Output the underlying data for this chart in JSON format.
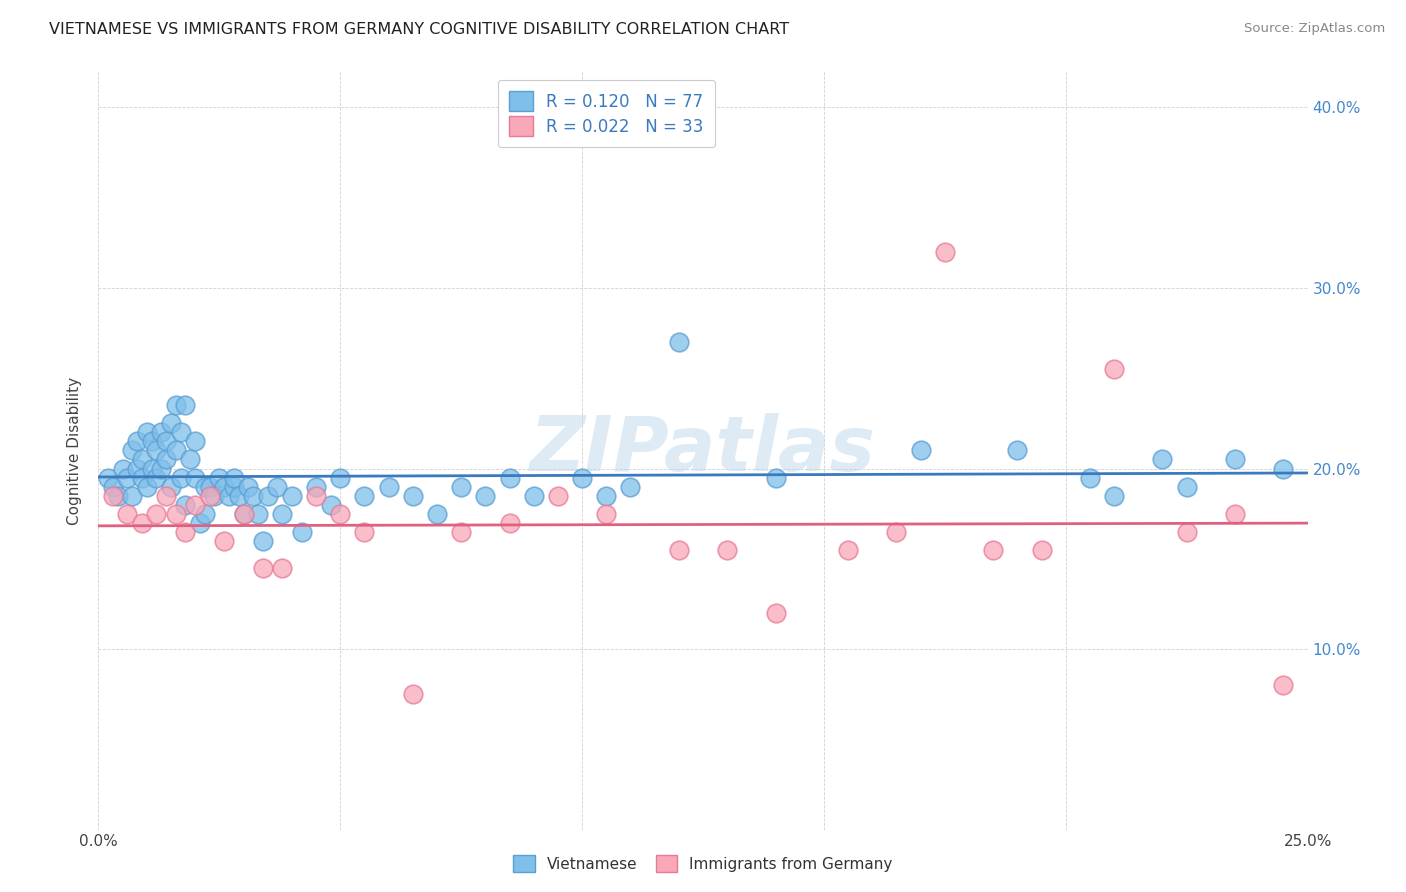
{
  "title": "VIETNAMESE VS IMMIGRANTS FROM GERMANY COGNITIVE DISABILITY CORRELATION CHART",
  "source": "Source: ZipAtlas.com",
  "ylabel": "Cognitive Disability",
  "watermark": "ZIPatlas",
  "xlim": [
    0.0,
    0.25
  ],
  "ylim": [
    0.0,
    0.42
  ],
  "xtick_positions": [
    0.0,
    0.05,
    0.1,
    0.15,
    0.2,
    0.25
  ],
  "xtick_labels": [
    "0.0%",
    "",
    "",
    "",
    "",
    "25.0%"
  ],
  "ytick_positions": [
    0.0,
    0.1,
    0.2,
    0.3,
    0.4
  ],
  "ytick_labels_right": [
    "",
    "10.0%",
    "20.0%",
    "30.0%",
    "40.0%"
  ],
  "blue_color": "#7fbfea",
  "pink_color": "#f8a8b8",
  "blue_edge_color": "#5a9fd4",
  "pink_edge_color": "#e87a95",
  "blue_line_color": "#3a7abf",
  "pink_line_color": "#e06080",
  "blue_R": 0.12,
  "blue_N": 77,
  "pink_R": 0.022,
  "pink_N": 33,
  "legend_label_blue": "Vietnamese",
  "legend_label_pink": "Immigrants from Germany",
  "blue_scatter_x": [
    0.002,
    0.003,
    0.004,
    0.005,
    0.006,
    0.007,
    0.007,
    0.008,
    0.008,
    0.009,
    0.009,
    0.01,
    0.01,
    0.011,
    0.011,
    0.012,
    0.012,
    0.013,
    0.013,
    0.014,
    0.014,
    0.015,
    0.015,
    0.016,
    0.016,
    0.017,
    0.017,
    0.018,
    0.018,
    0.019,
    0.02,
    0.02,
    0.021,
    0.022,
    0.022,
    0.023,
    0.024,
    0.025,
    0.026,
    0.027,
    0.028,
    0.028,
    0.029,
    0.03,
    0.031,
    0.032,
    0.033,
    0.034,
    0.035,
    0.037,
    0.038,
    0.04,
    0.042,
    0.045,
    0.048,
    0.05,
    0.055,
    0.06,
    0.065,
    0.07,
    0.075,
    0.08,
    0.085,
    0.09,
    0.1,
    0.105,
    0.11,
    0.12,
    0.14,
    0.17,
    0.19,
    0.205,
    0.21,
    0.22,
    0.225,
    0.235,
    0.245
  ],
  "blue_scatter_y": [
    0.195,
    0.19,
    0.185,
    0.2,
    0.195,
    0.185,
    0.21,
    0.2,
    0.215,
    0.195,
    0.205,
    0.19,
    0.22,
    0.2,
    0.215,
    0.195,
    0.21,
    0.2,
    0.22,
    0.205,
    0.215,
    0.19,
    0.225,
    0.235,
    0.21,
    0.22,
    0.195,
    0.235,
    0.18,
    0.205,
    0.215,
    0.195,
    0.17,
    0.175,
    0.19,
    0.19,
    0.185,
    0.195,
    0.19,
    0.185,
    0.19,
    0.195,
    0.185,
    0.175,
    0.19,
    0.185,
    0.175,
    0.16,
    0.185,
    0.19,
    0.175,
    0.185,
    0.165,
    0.19,
    0.18,
    0.195,
    0.185,
    0.19,
    0.185,
    0.175,
    0.19,
    0.185,
    0.195,
    0.185,
    0.195,
    0.185,
    0.19,
    0.27,
    0.195,
    0.21,
    0.21,
    0.195,
    0.185,
    0.205,
    0.19,
    0.205,
    0.2
  ],
  "pink_scatter_x": [
    0.003,
    0.006,
    0.009,
    0.012,
    0.014,
    0.016,
    0.018,
    0.02,
    0.023,
    0.026,
    0.03,
    0.034,
    0.038,
    0.045,
    0.05,
    0.055,
    0.065,
    0.075,
    0.085,
    0.095,
    0.105,
    0.12,
    0.13,
    0.14,
    0.155,
    0.165,
    0.175,
    0.185,
    0.195,
    0.21,
    0.225,
    0.235,
    0.245
  ],
  "pink_scatter_y": [
    0.185,
    0.175,
    0.17,
    0.175,
    0.185,
    0.175,
    0.165,
    0.18,
    0.185,
    0.16,
    0.175,
    0.145,
    0.145,
    0.185,
    0.175,
    0.165,
    0.075,
    0.165,
    0.17,
    0.185,
    0.175,
    0.155,
    0.155,
    0.12,
    0.155,
    0.165,
    0.32,
    0.155,
    0.155,
    0.255,
    0.165,
    0.175,
    0.08
  ]
}
